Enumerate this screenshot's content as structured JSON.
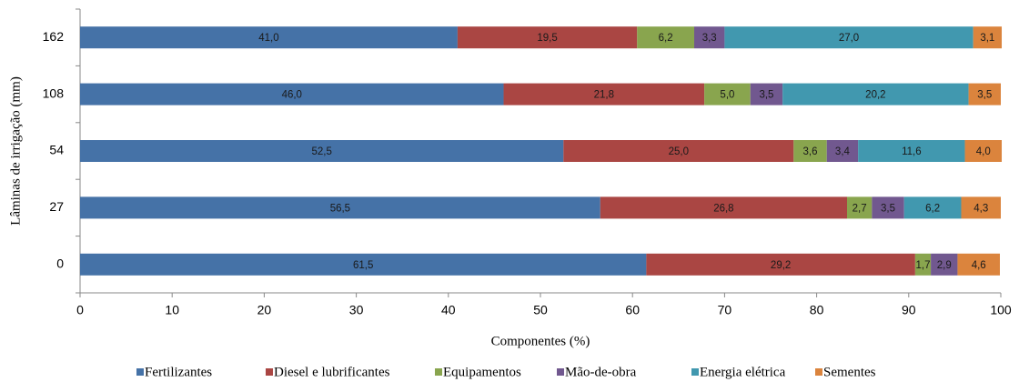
{
  "chart_data": {
    "type": "stacked-bar-horizontal",
    "x_label": "Componentes (%)",
    "y_label": "Lâminas de irrigação (mm)",
    "categories": [
      "0",
      "27",
      "54",
      "108",
      "162"
    ],
    "xlim": [
      0,
      100
    ],
    "xticks": [
      0,
      10,
      20,
      30,
      40,
      50,
      60,
      70,
      80,
      90,
      100
    ],
    "legend": "bottom",
    "series": [
      {
        "name": "Fertilizantes",
        "color": "#4572a7",
        "values": [
          61.5,
          56.5,
          52.5,
          46.0,
          41.0
        ],
        "value_labels": [
          "61,5",
          "56,5",
          "52,5",
          "46,0",
          "41,0"
        ]
      },
      {
        "name": "Diesel e lubrificantes",
        "color": "#aa4643",
        "values": [
          29.2,
          26.8,
          25.0,
          21.8,
          19.5
        ],
        "value_labels": [
          "29,2",
          "26,8",
          "25,0",
          "21,8",
          "19,5"
        ]
      },
      {
        "name": "Equipamentos",
        "color": "#89a54e",
        "values": [
          1.7,
          2.7,
          3.6,
          5.0,
          6.2
        ],
        "value_labels": [
          "1,7",
          "2,7",
          "3,6",
          "5,0",
          "6,2"
        ]
      },
      {
        "name": "Mão-de-obra",
        "color": "#71588f",
        "values": [
          2.9,
          3.5,
          3.4,
          3.5,
          3.3
        ],
        "value_labels": [
          "2,9",
          "3,5",
          "3,4",
          "3,5",
          "3,3"
        ]
      },
      {
        "name": "Energia elétrica",
        "color": "#4198af",
        "values": [
          null,
          6.2,
          11.6,
          20.2,
          27.0
        ],
        "value_labels": [
          null,
          "6,2",
          "11,6",
          "20,2",
          "27,0"
        ]
      },
      {
        "name": "Sementes",
        "color": "#db843d",
        "values": [
          4.6,
          4.3,
          4.0,
          3.5,
          3.1
        ],
        "value_labels": [
          "4,6",
          "4,3",
          "4,0",
          "3,5",
          "3,1"
        ]
      }
    ]
  }
}
